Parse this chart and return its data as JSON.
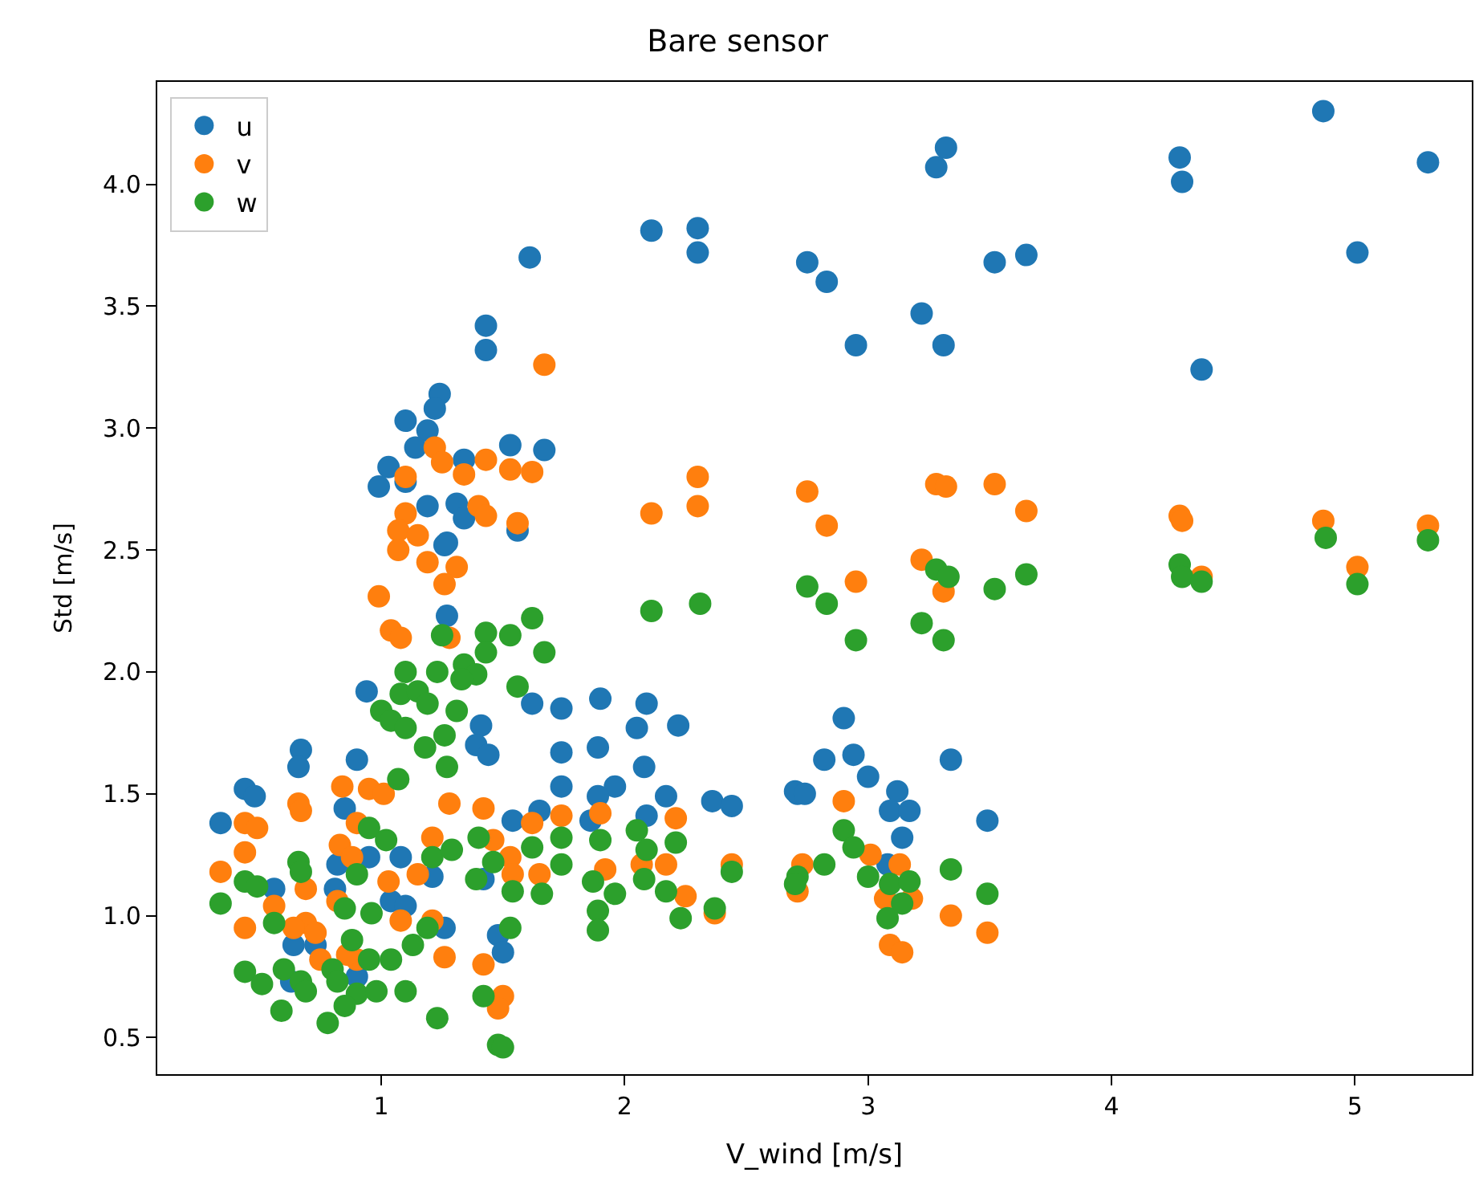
{
  "chart_data": {
    "type": "scatter",
    "title": "Bare sensor",
    "xlabel": "V_wind [m/s]",
    "ylabel": "Std [m/s]",
    "xlim": [
      0.08,
      5.48
    ],
    "ylim": [
      0.35,
      4.42
    ],
    "xticks": [
      1,
      2,
      3,
      4,
      5
    ],
    "yticks": [
      {
        "value": 0.5,
        "label": "0.5"
      },
      {
        "value": 1.0,
        "label": "1.0"
      },
      {
        "value": 1.5,
        "label": "1.5"
      },
      {
        "value": 2.0,
        "label": "2.0"
      },
      {
        "value": 2.5,
        "label": "2.5"
      },
      {
        "value": 3.0,
        "label": "3.0"
      },
      {
        "value": 3.5,
        "label": "3.5"
      },
      {
        "value": 4.0,
        "label": "4.0"
      }
    ],
    "legend": "top left",
    "marker": "circle",
    "series": [
      {
        "name": "u",
        "color": "#1f77b4",
        "x": [
          4.87,
          5.3,
          4.28,
          4.29,
          4.37,
          5.01,
          3.32,
          3.28,
          2.75,
          2.83,
          2.95,
          3.22,
          3.31,
          3.52,
          3.65,
          2.11,
          2.3,
          2.3,
          1.61,
          1.43,
          1.43,
          1.24,
          1.22,
          1.1,
          1.19,
          1.14,
          1.03,
          0.99,
          1.1,
          1.34,
          1.53,
          1.67,
          1.19,
          1.31,
          1.34,
          1.26,
          1.56,
          1.27,
          1.27,
          0.94,
          1.41,
          1.39,
          1.44,
          1.62,
          1.74,
          1.9,
          2.09,
          2.05,
          2.22,
          1.74,
          1.89,
          2.08,
          1.74,
          1.96,
          1.89,
          2.17,
          2.36,
          2.44,
          2.71,
          0.67,
          0.66,
          0.9,
          0.44,
          0.48,
          0.34,
          0.85,
          1.54,
          1.65,
          1.86,
          2.09,
          1.08,
          0.95,
          0.82,
          1.21,
          1.42,
          0.56,
          0.81,
          1.26,
          1.04,
          1.1,
          1.48,
          1.5,
          0.64,
          0.73,
          0.9,
          0.63,
          2.9,
          2.82,
          2.94,
          3.0,
          2.7,
          2.74,
          3.12,
          3.09,
          3.17,
          3.14,
          3.34,
          3.49,
          3.08
        ],
        "values": [
          4.3,
          4.09,
          4.11,
          4.01,
          3.24,
          3.72,
          4.15,
          4.07,
          3.68,
          3.6,
          3.34,
          3.47,
          3.34,
          3.68,
          3.71,
          3.81,
          3.82,
          3.72,
          3.7,
          3.42,
          3.32,
          3.14,
          3.08,
          3.03,
          2.99,
          2.92,
          2.84,
          2.76,
          2.78,
          2.87,
          2.93,
          2.91,
          2.68,
          2.69,
          2.63,
          2.52,
          2.58,
          2.53,
          2.23,
          1.92,
          1.78,
          1.7,
          1.66,
          1.87,
          1.85,
          1.89,
          1.87,
          1.77,
          1.78,
          1.67,
          1.69,
          1.61,
          1.53,
          1.53,
          1.49,
          1.49,
          1.47,
          1.45,
          1.5,
          1.68,
          1.61,
          1.64,
          1.52,
          1.49,
          1.38,
          1.44,
          1.39,
          1.43,
          1.39,
          1.41,
          1.24,
          1.24,
          1.21,
          1.16,
          1.15,
          1.11,
          1.11,
          0.95,
          1.06,
          1.04,
          0.92,
          0.85,
          0.88,
          0.88,
          0.75,
          0.73,
          1.81,
          1.64,
          1.66,
          1.57,
          1.51,
          1.5,
          1.51,
          1.43,
          1.43,
          1.32,
          1.64,
          1.39,
          1.21
        ]
      },
      {
        "name": "v",
        "color": "#ff7f0e",
        "x": [
          2.75,
          2.83,
          3.22,
          3.28,
          3.32,
          3.52,
          3.65,
          4.28,
          4.29,
          4.87,
          5.3,
          5.01,
          4.37,
          2.95,
          3.31,
          1.67,
          2.11,
          2.3,
          2.3,
          1.22,
          1.25,
          1.34,
          1.43,
          1.53,
          1.62,
          1.1,
          1.4,
          1.43,
          1.56,
          1.1,
          1.07,
          1.15,
          1.07,
          1.19,
          1.31,
          1.26,
          0.99,
          1.04,
          1.08,
          1.28,
          0.84,
          0.95,
          1.01,
          0.66,
          0.67,
          1.28,
          1.42,
          0.44,
          0.49,
          0.9,
          0.83,
          0.88,
          1.21,
          1.46,
          1.62,
          1.74,
          1.9,
          2.21,
          0.44,
          0.34,
          1.15,
          1.53,
          1.54,
          1.65,
          1.92,
          2.07,
          2.17,
          1.03,
          0.69,
          0.82,
          2.25,
          2.44,
          2.37,
          2.71,
          0.44,
          0.56,
          0.69,
          0.73,
          0.64,
          1.08,
          1.21,
          1.26,
          0.9,
          0.86,
          1.42,
          1.5,
          1.48,
          0.75,
          2.9,
          2.73,
          3.01,
          3.13,
          3.07,
          3.18,
          3.09,
          3.14,
          3.34,
          3.49
        ],
        "values": [
          2.74,
          2.6,
          2.46,
          2.77,
          2.76,
          2.77,
          2.66,
          2.64,
          2.62,
          2.62,
          2.6,
          2.43,
          2.39,
          2.37,
          2.33,
          3.26,
          2.65,
          2.8,
          2.68,
          2.92,
          2.86,
          2.81,
          2.87,
          2.83,
          2.82,
          2.8,
          2.68,
          2.64,
          2.61,
          2.65,
          2.58,
          2.56,
          2.5,
          2.45,
          2.43,
          2.36,
          2.31,
          2.17,
          2.14,
          2.14,
          1.53,
          1.52,
          1.5,
          1.46,
          1.43,
          1.46,
          1.44,
          1.38,
          1.36,
          1.38,
          1.29,
          1.24,
          1.32,
          1.31,
          1.38,
          1.41,
          1.42,
          1.4,
          1.26,
          1.18,
          1.17,
          1.24,
          1.17,
          1.17,
          1.19,
          1.21,
          1.21,
          1.14,
          1.11,
          1.06,
          1.08,
          1.21,
          1.01,
          1.1,
          0.95,
          1.04,
          0.97,
          0.93,
          0.95,
          0.98,
          0.98,
          0.83,
          0.82,
          0.84,
          0.8,
          0.67,
          0.62,
          0.82,
          1.47,
          1.21,
          1.25,
          1.21,
          1.07,
          1.07,
          0.88,
          0.85,
          1.0,
          0.93
        ]
      },
      {
        "name": "w",
        "color": "#2ca02c",
        "x": [
          4.88,
          5.3,
          5.01,
          4.28,
          4.29,
          4.37,
          2.75,
          2.83,
          2.95,
          3.28,
          3.33,
          3.22,
          3.31,
          3.52,
          3.65,
          2.9,
          2.94,
          2.82,
          2.71,
          2.7,
          3.0,
          3.09,
          3.17,
          3.14,
          3.08,
          3.34,
          3.49,
          2.31,
          2.11,
          1.62,
          1.25,
          1.43,
          1.53,
          1.67,
          1.43,
          1.34,
          1.39,
          1.1,
          1.23,
          1.33,
          1.56,
          1.08,
          1.15,
          1.19,
          1.0,
          1.04,
          1.1,
          1.31,
          1.26,
          1.18,
          1.27,
          1.07,
          0.95,
          1.02,
          0.66,
          0.67,
          0.44,
          0.49,
          0.34,
          0.9,
          1.21,
          1.29,
          1.4,
          1.46,
          1.39,
          1.62,
          1.74,
          1.74,
          1.54,
          1.66,
          1.9,
          1.87,
          1.96,
          2.05,
          2.09,
          2.08,
          2.17,
          2.21,
          2.23,
          2.44,
          2.37,
          1.89,
          1.89,
          1.53,
          0.56,
          0.85,
          0.96,
          0.88,
          1.19,
          1.13,
          1.04,
          0.44,
          0.51,
          0.6,
          0.67,
          0.69,
          0.8,
          0.82,
          0.9,
          0.98,
          0.95,
          0.59,
          0.78,
          0.85,
          1.23,
          1.1,
          1.42,
          1.48,
          1.5
        ],
        "values": [
          2.55,
          2.54,
          2.36,
          2.44,
          2.39,
          2.37,
          2.35,
          2.28,
          2.13,
          2.42,
          2.39,
          2.2,
          2.13,
          2.34,
          2.4,
          1.35,
          1.28,
          1.21,
          1.16,
          1.13,
          1.16,
          1.13,
          1.14,
          1.05,
          0.99,
          1.19,
          1.09,
          2.28,
          2.25,
          2.22,
          2.15,
          2.16,
          2.15,
          2.08,
          2.08,
          2.03,
          1.99,
          2.0,
          2.0,
          1.97,
          1.94,
          1.91,
          1.92,
          1.87,
          1.84,
          1.8,
          1.77,
          1.84,
          1.74,
          1.69,
          1.61,
          1.56,
          1.36,
          1.31,
          1.22,
          1.18,
          1.14,
          1.12,
          1.05,
          1.17,
          1.24,
          1.27,
          1.32,
          1.22,
          1.15,
          1.28,
          1.32,
          1.21,
          1.1,
          1.09,
          1.31,
          1.14,
          1.09,
          1.35,
          1.27,
          1.15,
          1.1,
          1.3,
          0.99,
          1.18,
          1.03,
          1.02,
          0.94,
          0.95,
          0.97,
          1.03,
          1.01,
          0.9,
          0.95,
          0.88,
          0.82,
          0.77,
          0.72,
          0.78,
          0.73,
          0.69,
          0.78,
          0.73,
          0.68,
          0.69,
          0.82,
          0.61,
          0.56,
          0.63,
          0.58,
          0.69,
          0.67,
          0.47,
          0.46
        ]
      }
    ]
  }
}
